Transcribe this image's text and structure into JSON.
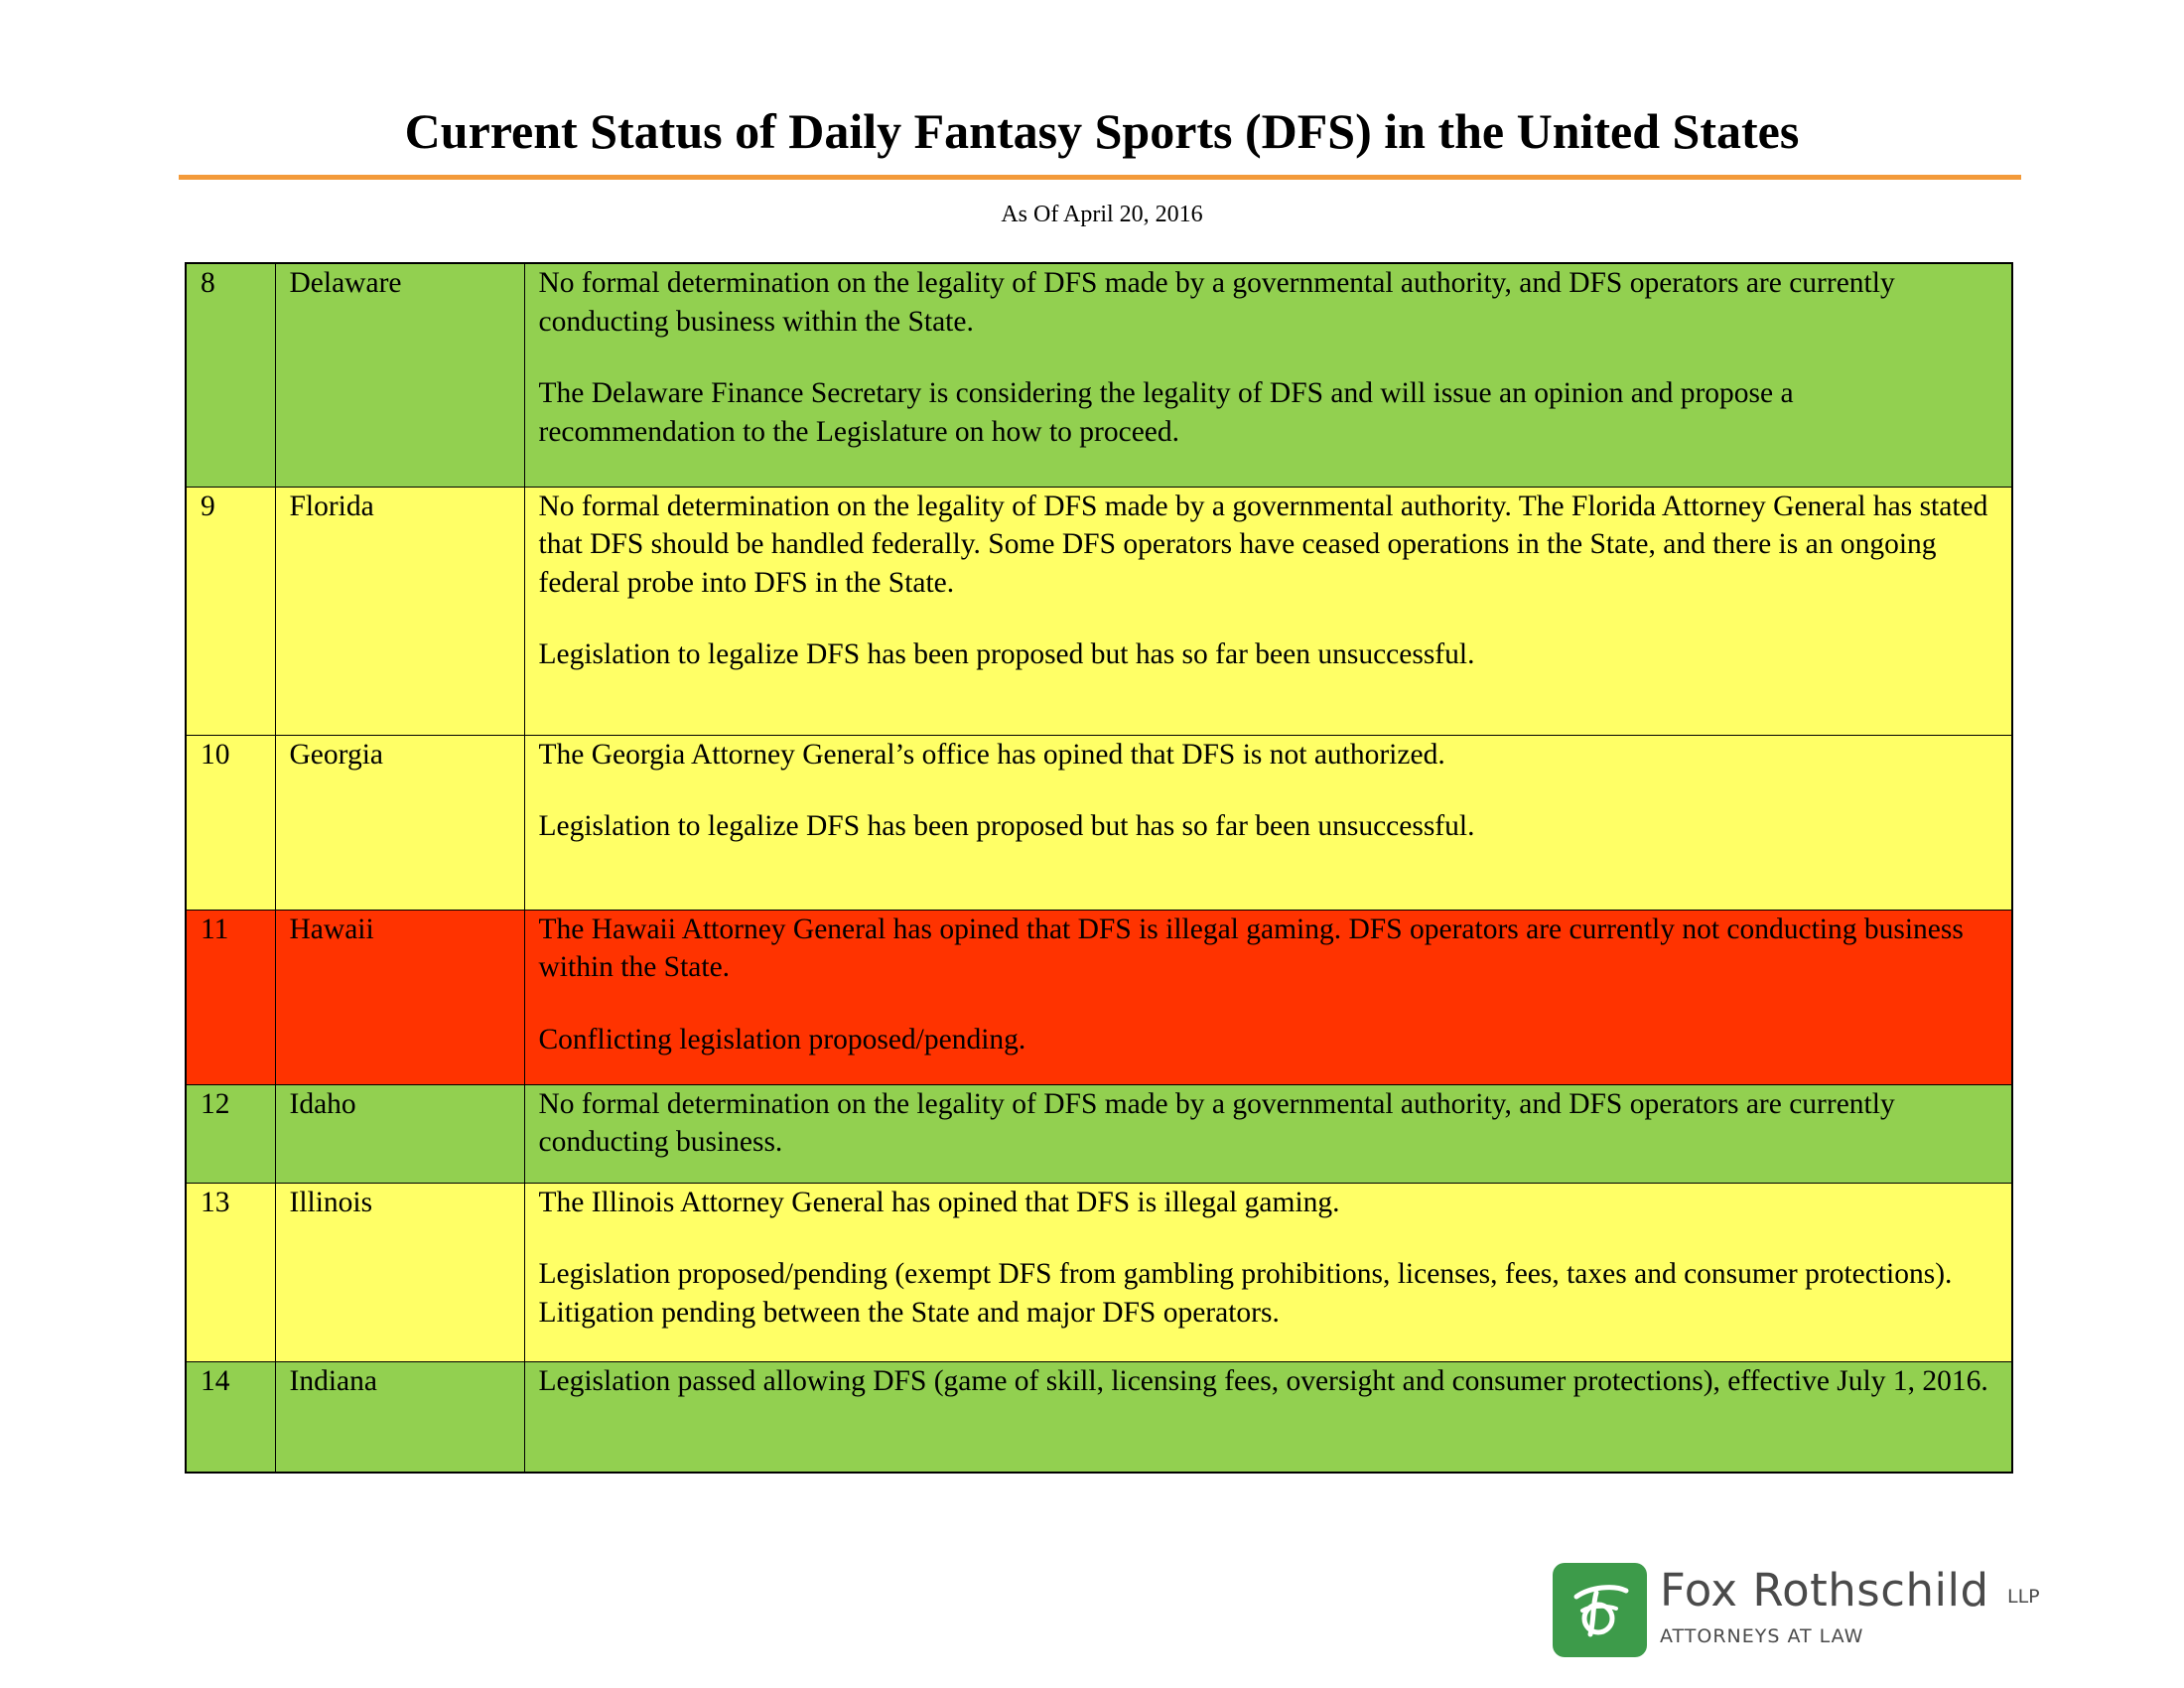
{
  "document": {
    "title": "Current Status of Daily Fantasy Sports (DFS) in the United States",
    "subtitle": "As Of April 20, 2016"
  },
  "colors": {
    "title_rule": "#f39a3a",
    "green": "#92d050",
    "yellow": "#ffff66",
    "red": "#ff3300",
    "logo_green": "#3d9b4a"
  },
  "rows": [
    {
      "number": "8",
      "state": "Delaware",
      "status_color": "green",
      "paragraphs": [
        "No formal determination on the legality of DFS made by a governmental authority, and DFS operators are currently conducting business within the State.",
        "The Delaware Finance Secretary is considering the legality of DFS and will issue an opinion and propose a recommendation to the Legislature on how to proceed."
      ]
    },
    {
      "number": "9",
      "state": "Florida",
      "status_color": "yellow",
      "paragraphs": [
        "No formal determination on the legality of DFS made by a governmental authority.  The Florida Attorney General has stated that DFS should be handled federally.  Some DFS operators have ceased operations in the State, and there is an ongoing federal probe into DFS in the State.",
        "Legislation to legalize DFS has been proposed but has so far been unsuccessful."
      ]
    },
    {
      "number": "10",
      "state": "Georgia",
      "status_color": "yellow",
      "paragraphs": [
        "The Georgia Attorney General’s office has opined that DFS is not authorized.",
        "Legislation to legalize DFS has been proposed but has so far been unsuccessful."
      ]
    },
    {
      "number": "11",
      "state": "Hawaii",
      "status_color": "red",
      "paragraphs": [
        "The Hawaii Attorney General has opined that DFS is illegal gaming.  DFS operators are currently not conducting business within the State.",
        "Conflicting legislation proposed/pending."
      ]
    },
    {
      "number": "12",
      "state": "Idaho",
      "status_color": "green",
      "paragraphs": [
        "No formal determination on the legality of DFS made by a governmental authority, and DFS operators are currently conducting business."
      ]
    },
    {
      "number": "13",
      "state": "Illinois",
      "status_color": "yellow",
      "paragraphs": [
        "The Illinois Attorney General has opined that DFS is illegal gaming.",
        "Legislation proposed/pending (exempt DFS from gambling prohibitions, licenses, fees, taxes and consumer protections). Litigation pending between the State and major DFS operators."
      ]
    },
    {
      "number": "14",
      "state": "Indiana",
      "status_color": "green",
      "paragraphs": [
        "Legislation passed allowing DFS (game of skill, licensing fees, oversight and consumer protections), effective July 1, 2016."
      ]
    }
  ],
  "logo": {
    "name": "Fox Rothschild",
    "suffix": "LLP",
    "tagline": "ATTORNEYS AT LAW",
    "mark_icon": "fox-rothschild-logo-mark"
  }
}
